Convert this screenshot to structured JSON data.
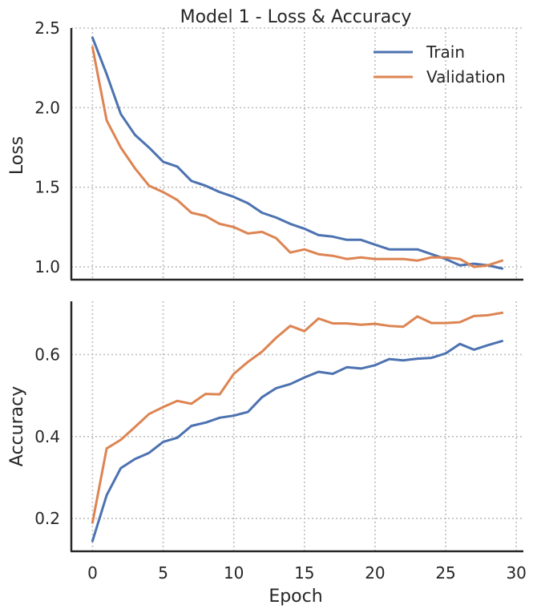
{
  "chart_data": [
    {
      "type": "line",
      "title": "Model 1 - Loss & Accuracy",
      "xlabel": "",
      "ylabel": "Loss",
      "xlim": [
        -1.5,
        30.5
      ],
      "ylim": [
        0.92,
        2.5
      ],
      "x_ticks": [
        0,
        5,
        10,
        15,
        20,
        25,
        30
      ],
      "y_ticks": [
        1.0,
        1.5,
        2.0,
        2.5
      ],
      "y_tick_labels": [
        "1.0",
        "1.5",
        "2.0",
        "2.5"
      ],
      "grid": true,
      "legend_position": "top-right",
      "x": [
        0,
        1,
        2,
        3,
        4,
        5,
        6,
        7,
        8,
        9,
        10,
        11,
        12,
        13,
        14,
        15,
        16,
        17,
        18,
        19,
        20,
        21,
        22,
        23,
        24,
        25,
        26,
        27,
        28,
        29
      ],
      "series": [
        {
          "name": "Train",
          "color": "#4c72b0",
          "values": [
            2.44,
            2.21,
            1.96,
            1.83,
            1.75,
            1.66,
            1.63,
            1.54,
            1.51,
            1.47,
            1.44,
            1.4,
            1.34,
            1.31,
            1.27,
            1.24,
            1.2,
            1.19,
            1.17,
            1.17,
            1.14,
            1.11,
            1.11,
            1.11,
            1.08,
            1.05,
            1.01,
            1.02,
            1.01,
            0.99
          ]
        },
        {
          "name": "Validation",
          "color": "#dd8452",
          "values": [
            2.38,
            1.92,
            1.75,
            1.62,
            1.51,
            1.47,
            1.42,
            1.34,
            1.32,
            1.27,
            1.25,
            1.21,
            1.22,
            1.18,
            1.09,
            1.11,
            1.08,
            1.07,
            1.05,
            1.06,
            1.05,
            1.05,
            1.05,
            1.04,
            1.06,
            1.06,
            1.05,
            1.0,
            1.01,
            1.04
          ]
        }
      ]
    },
    {
      "type": "line",
      "title": "",
      "xlabel": "Epoch",
      "ylabel": "Accuracy",
      "xlim": [
        -1.5,
        30.5
      ],
      "ylim": [
        0.12,
        0.73
      ],
      "x_ticks": [
        0,
        5,
        10,
        15,
        20,
        25,
        30
      ],
      "x_tick_labels": [
        "0",
        "5",
        "10",
        "15",
        "20",
        "25",
        "30"
      ],
      "y_ticks": [
        0.2,
        0.4,
        0.6
      ],
      "y_tick_labels": [
        "0.2",
        "0.4",
        "0.6"
      ],
      "grid": true,
      "x": [
        0,
        1,
        2,
        3,
        4,
        5,
        6,
        7,
        8,
        9,
        10,
        11,
        12,
        13,
        14,
        15,
        16,
        17,
        18,
        19,
        20,
        21,
        22,
        23,
        24,
        25,
        26,
        27,
        28,
        29
      ],
      "series": [
        {
          "color": "#4c72b0",
          "values": [
            0.145,
            0.257,
            0.323,
            0.345,
            0.36,
            0.387,
            0.397,
            0.426,
            0.434,
            0.446,
            0.451,
            0.46,
            0.496,
            0.518,
            0.528,
            0.544,
            0.558,
            0.553,
            0.569,
            0.566,
            0.574,
            0.589,
            0.586,
            0.59,
            0.592,
            0.603,
            0.626,
            0.612,
            0.623,
            0.633
          ]
        },
        {
          "color": "#dd8452",
          "values": [
            0.19,
            0.371,
            0.392,
            0.423,
            0.455,
            0.472,
            0.487,
            0.48,
            0.504,
            0.503,
            0.553,
            0.582,
            0.607,
            0.641,
            0.67,
            0.657,
            0.688,
            0.676,
            0.676,
            0.673,
            0.675,
            0.67,
            0.668,
            0.693,
            0.677,
            0.677,
            0.679,
            0.694,
            0.696,
            0.702
          ]
        }
      ]
    }
  ]
}
